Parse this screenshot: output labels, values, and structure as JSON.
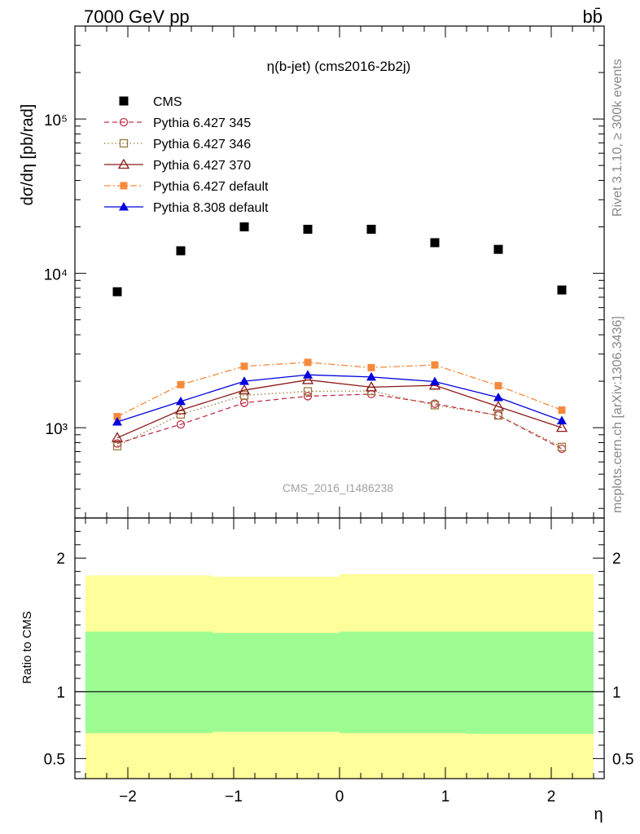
{
  "header": {
    "energy": "7000 GeV pp",
    "process": "bb̄"
  },
  "side_labels": {
    "rivet": "Rivet 3.1.10, ≥ 300k events",
    "mcplots": "mcplots.cern.ch [arXiv:1306.3436]"
  },
  "chart_data": [
    {
      "type": "scatter",
      "panel": "main",
      "title": "η(b-jet) (cms2016-2b2j)",
      "watermark": "CMS_2016_I1486238",
      "xlabel": "η",
      "ylabel": "dσ/dη [pb/rad]",
      "yscale": "log",
      "xlim": [
        -2.5,
        2.5
      ],
      "ylim": [
        260,
        400000
      ],
      "y_tick_labels": [
        "10³",
        "10⁴",
        "10⁵"
      ],
      "legend_position": "top-left",
      "x": [
        -2.1,
        -1.5,
        -0.9,
        -0.3,
        0.3,
        0.9,
        1.5,
        2.1
      ],
      "series": [
        {
          "name": "CMS",
          "color": "#000000",
          "marker": "square",
          "line": "none",
          "values": [
            7600,
            14000,
            20000,
            19300,
            19300,
            15800,
            14300,
            7800
          ]
        },
        {
          "name": "Pythia 6.427 345",
          "color": "#c0304a",
          "marker": "open-circle",
          "line": "dashed",
          "values": [
            790,
            1050,
            1450,
            1600,
            1650,
            1430,
            1200,
            730
          ]
        },
        {
          "name": "Pythia 6.427 346",
          "color": "#9a7a3a",
          "marker": "open-square",
          "line": "dotted",
          "values": [
            760,
            1220,
            1620,
            1720,
            1730,
            1400,
            1200,
            750
          ]
        },
        {
          "name": "Pythia 6.427 370",
          "color": "#8b1a1a",
          "marker": "open-triangle",
          "line": "solid",
          "values": [
            860,
            1300,
            1750,
            2040,
            1830,
            1880,
            1370,
            1000
          ]
        },
        {
          "name": "Pythia 6.427 default",
          "color": "#f58a3c",
          "marker": "filled-square",
          "line": "dashdot",
          "values": [
            1180,
            1900,
            2500,
            2650,
            2450,
            2550,
            1870,
            1300
          ]
        },
        {
          "name": "Pythia 8.308 default",
          "color": "#0000dd",
          "marker": "filled-triangle",
          "line": "solid",
          "values": [
            1090,
            1480,
            2000,
            2200,
            2130,
            1990,
            1570,
            1110
          ]
        }
      ]
    },
    {
      "type": "area",
      "panel": "ratio",
      "ylabel": "Ratio to CMS",
      "xlabel": "η",
      "xlim": [
        -2.5,
        2.5
      ],
      "ylim": [
        0.35,
        2.3
      ],
      "x_ticks": [
        "−2",
        "−1",
        "0",
        "1",
        "2"
      ],
      "y_ticks": [
        "0.5",
        "1",
        "2"
      ],
      "reference_line": 1,
      "bins": [
        {
          "range": [
            -2.4,
            -1.2
          ],
          "inner_band": [
            0.69,
            1.45
          ],
          "outer_band": [
            0.35,
            1.87
          ]
        },
        {
          "range": [
            -1.2,
            0.0
          ],
          "inner_band": [
            0.7,
            1.44
          ],
          "outer_band": [
            0.35,
            1.86
          ]
        },
        {
          "range": [
            0.0,
            1.2
          ],
          "inner_band": [
            0.69,
            1.45
          ],
          "outer_band": [
            0.35,
            1.88
          ]
        },
        {
          "range": [
            1.2,
            2.4
          ],
          "inner_band": [
            0.685,
            1.45
          ],
          "outer_band": [
            0.35,
            1.88
          ]
        }
      ],
      "colors": {
        "inner": "#9dfd93",
        "outer": "#fefe9a"
      }
    }
  ]
}
